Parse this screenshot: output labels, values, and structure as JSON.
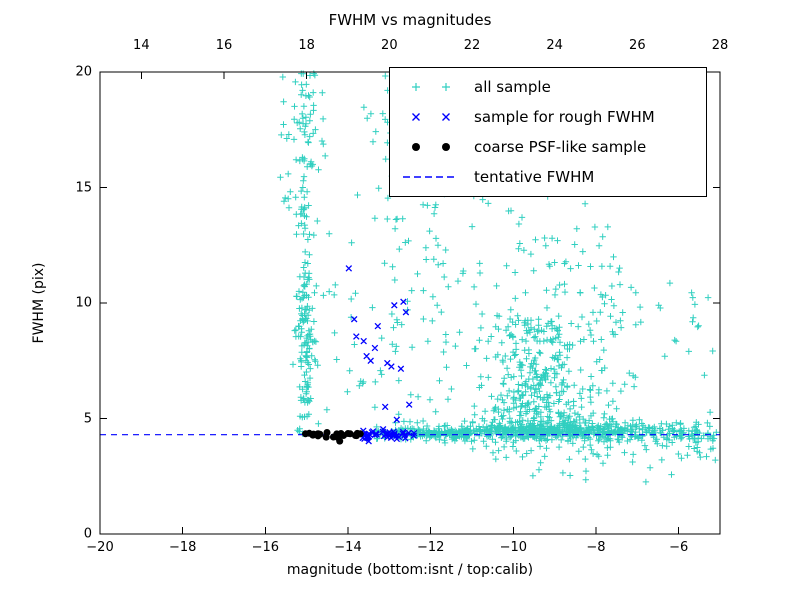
{
  "figure": {
    "background": "#ffffff"
  },
  "chart_data": {
    "type": "scatter",
    "title": "FWHM vs magnitudes",
    "xlabel": "magnitude (bottom:isnt / top:calib)",
    "ylabel": "FWHM (pix)",
    "xlim": [
      -20,
      -5
    ],
    "xlim_top": [
      13,
      28
    ],
    "ylim": [
      0,
      20
    ],
    "grid": false,
    "xticks_bottom": [
      {
        "v": -20,
        "label": "−20"
      },
      {
        "v": -18,
        "label": "−18"
      },
      {
        "v": -16,
        "label": "−16"
      },
      {
        "v": -14,
        "label": "−14"
      },
      {
        "v": -12,
        "label": "−12"
      },
      {
        "v": -10,
        "label": "−10"
      },
      {
        "v": -8,
        "label": "−8"
      },
      {
        "v": -6,
        "label": "−6"
      }
    ],
    "xticks_top": [
      {
        "v": 14,
        "label": "14"
      },
      {
        "v": 16,
        "label": "16"
      },
      {
        "v": 18,
        "label": "18"
      },
      {
        "v": 20,
        "label": "20"
      },
      {
        "v": 22,
        "label": "22"
      },
      {
        "v": 24,
        "label": "24"
      },
      {
        "v": 26,
        "label": "26"
      },
      {
        "v": 28,
        "label": "28"
      }
    ],
    "yticks": [
      {
        "v": 0,
        "label": "0"
      },
      {
        "v": 5,
        "label": "5"
      },
      {
        "v": 10,
        "label": "10"
      },
      {
        "v": 15,
        "label": "15"
      },
      {
        "v": 20,
        "label": "20"
      }
    ],
    "tentative_fwhm": {
      "y": 4.3,
      "color": "#0000ff",
      "style": "dashed"
    },
    "legend_position": "upper right",
    "legend": [
      {
        "label": "all sample",
        "marker": "plus",
        "color": "#30cfc0"
      },
      {
        "label": "sample for rough FWHM",
        "marker": "x",
        "color": "#0000ff"
      },
      {
        "label": "coarse PSF-like sample",
        "marker": "dot",
        "color": "#000000"
      },
      {
        "label": "tentative FWHM",
        "marker": "dashed-line",
        "color": "#0000ff"
      }
    ],
    "series": [
      {
        "name": "all sample",
        "marker": "plus",
        "color": "#30cfc0",
        "seed": 11,
        "clusters": [
          {
            "count": 130,
            "x": {
              "dist": "gauss",
              "mu": -15.03,
              "sigma": 0.1
            },
            "y": {
              "dist": "uniform",
              "min": 4.3,
              "max": 20
            }
          },
          {
            "count": 55,
            "x": {
              "dist": "gauss",
              "mu": -15.0,
              "sigma": 0.13
            },
            "y": {
              "dist": "gauss",
              "mu": 8.5,
              "sigma": 0.8
            }
          },
          {
            "count": 45,
            "x": {
              "dist": "uniform",
              "min": -15.65,
              "max": -14.55
            },
            "y": {
              "dist": "uniform",
              "min": 13.5,
              "max": 20
            }
          },
          {
            "count": 18,
            "x": {
              "dist": "uniform",
              "min": -14.6,
              "max": -13.6
            },
            "y": {
              "dist": "uniform",
              "min": 5,
              "max": 13
            }
          },
          {
            "count": 70,
            "x": {
              "dist": "gauss",
              "mu": -12.9,
              "sigma": 0.35
            },
            "y": {
              "dist": "uniform",
              "min": 4.5,
              "max": 20
            }
          },
          {
            "count": 20,
            "x": {
              "dist": "uniform",
              "min": -12.5,
              "max": -11.2
            },
            "y": {
              "dist": "uniform",
              "min": 12,
              "max": 18.5
            }
          },
          {
            "count": 40,
            "x": {
              "dist": "uniform",
              "min": -12.2,
              "max": -10.6
            },
            "y": {
              "dist": "uniform",
              "min": 4.8,
              "max": 12
            }
          },
          {
            "count": 320,
            "x": {
              "dist": "gauss",
              "mu": -9.4,
              "sigma": 0.55
            },
            "y": {
              "dist": "powlow",
              "min": 4.4,
              "max": 9.5,
              "exp": 1.8
            }
          },
          {
            "count": 260,
            "x": {
              "dist": "gauss",
              "mu": -9.2,
              "sigma": 1.05
            },
            "y": {
              "dist": "powlow",
              "min": 4.4,
              "max": 14,
              "exp": 2.6
            }
          },
          {
            "count": 30,
            "x": {
              "dist": "uniform",
              "min": -11.0,
              "max": -8.0
            },
            "y": {
              "dist": "uniform",
              "min": 13,
              "max": 19.8
            }
          },
          {
            "count": 450,
            "x": {
              "dist": "gauss",
              "mu": -9.0,
              "sigma": 2.0,
              "min": -13.4,
              "max": -5.05
            },
            "y": {
              "dist": "gauss",
              "mu": 4.38,
              "sigma": 0.18
            }
          },
          {
            "count": 120,
            "x": {
              "dist": "uniform",
              "min": -13.35,
              "max": -11.0
            },
            "y": {
              "dist": "gauss",
              "mu": 4.32,
              "sigma": 0.12
            }
          },
          {
            "count": 60,
            "x": {
              "dist": "uniform",
              "min": -7.2,
              "max": -5.05
            },
            "y": {
              "dist": "gauss",
              "mu": 4.4,
              "sigma": 0.3
            }
          },
          {
            "count": 50,
            "x": {
              "dist": "uniform",
              "min": -11.0,
              "max": -5.1
            },
            "y": {
              "dist": "uniform",
              "min": 3.2,
              "max": 4.1
            }
          },
          {
            "count": 12,
            "x": {
              "dist": "uniform",
              "min": -10.0,
              "max": -6.0
            },
            "y": {
              "dist": "uniform",
              "min": 2.2,
              "max": 3.2
            }
          },
          {
            "count": 18,
            "x": {
              "dist": "uniform",
              "min": -7.0,
              "max": -5.1
            },
            "y": {
              "dist": "uniform",
              "min": 6.5,
              "max": 11.2
            }
          },
          {
            "count": 45,
            "x": {
              "dist": "uniform",
              "min": -8.2,
              "max": -7.0
            },
            "y": {
              "dist": "powlow",
              "min": 4.5,
              "max": 12,
              "exp": 2.0
            }
          }
        ],
        "points": []
      },
      {
        "name": "sample for rough FWHM",
        "marker": "x",
        "color": "#0000ff",
        "seed": 22,
        "clusters": [
          {
            "count": 45,
            "x": {
              "dist": "uniform",
              "min": -13.65,
              "max": -12.4
            },
            "y": {
              "dist": "gauss",
              "mu": 4.33,
              "sigma": 0.1
            }
          }
        ],
        "points": [
          [
            -13.98,
            11.5
          ],
          [
            -13.85,
            9.3
          ],
          [
            -13.8,
            8.55
          ],
          [
            -13.62,
            8.35
          ],
          [
            -13.55,
            7.7
          ],
          [
            -13.45,
            7.5
          ],
          [
            -13.35,
            8.05
          ],
          [
            -13.28,
            9.0
          ],
          [
            -13.05,
            7.4
          ],
          [
            -12.95,
            7.25
          ],
          [
            -12.88,
            9.9
          ],
          [
            -12.72,
            7.15
          ],
          [
            -12.66,
            10.05
          ],
          [
            -12.6,
            9.6
          ],
          [
            -12.52,
            5.6
          ],
          [
            -13.1,
            5.5
          ],
          [
            -12.82,
            4.95
          ]
        ]
      },
      {
        "name": "coarse PSF-like sample",
        "marker": "dot",
        "color": "#000000",
        "seed": 33,
        "clusters": [
          {
            "count": 20,
            "x": {
              "dist": "uniform",
              "min": -15.05,
              "max": -13.65
            },
            "y": {
              "dist": "gauss",
              "mu": 4.3,
              "sigma": 0.07
            }
          }
        ],
        "points": [
          [
            -14.2,
            4.02
          ],
          [
            -14.85,
            4.28
          ],
          [
            -14.0,
            4.35
          ]
        ]
      }
    ]
  }
}
